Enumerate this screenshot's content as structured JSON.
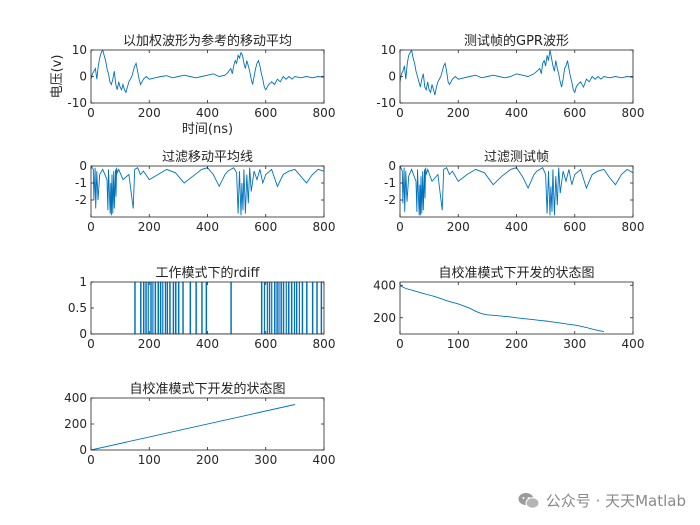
{
  "colors": {
    "line": "#0072BD",
    "axis": "#262626",
    "background": "#ffffff"
  },
  "watermark": {
    "text": "公众号 · 天天Matlab",
    "icon": "wechat-icon"
  },
  "chart_data": [
    {
      "type": "line",
      "title": "以加权波形为参考的移动平均",
      "xlabel": "时间(ns)",
      "ylabel": "电压(v)",
      "xlim": [
        0,
        800
      ],
      "ylim": [
        -10,
        10
      ],
      "xticks": [
        0,
        200,
        400,
        600,
        800
      ],
      "yticks": [
        -10,
        0,
        10
      ],
      "x": [
        0,
        5,
        10,
        15,
        20,
        25,
        30,
        35,
        40,
        45,
        50,
        55,
        60,
        65,
        70,
        75,
        80,
        85,
        90,
        95,
        100,
        105,
        110,
        115,
        120,
        125,
        130,
        140,
        150,
        155,
        160,
        165,
        170,
        175,
        180,
        190,
        200,
        220,
        240,
        260,
        280,
        300,
        320,
        340,
        360,
        380,
        400,
        420,
        440,
        460,
        470,
        480,
        485,
        490,
        495,
        500,
        505,
        510,
        515,
        520,
        525,
        530,
        535,
        540,
        545,
        550,
        555,
        560,
        565,
        570,
        575,
        580,
        585,
        590,
        595,
        600,
        605,
        610,
        620,
        630,
        640,
        650,
        660,
        670,
        680,
        690,
        700,
        720,
        740,
        760,
        780,
        800
      ],
      "values": [
        -1,
        1,
        2,
        3,
        -1,
        4,
        7,
        9,
        10,
        8,
        6,
        3,
        1,
        -2,
        -3,
        -1,
        2,
        -3,
        -5,
        -2,
        -4,
        -5,
        -3,
        -5,
        -6,
        -4,
        -2,
        0,
        4,
        5,
        2,
        -1,
        -3,
        -2,
        -1,
        0,
        -1,
        -0.5,
        0,
        0.3,
        -0.5,
        0,
        0.5,
        0,
        -0.5,
        0,
        0.5,
        1,
        0,
        0.5,
        1.5,
        3,
        1,
        4,
        6,
        5,
        8,
        7,
        9,
        8,
        5,
        3,
        6,
        4,
        2,
        -1,
        -3,
        0,
        3,
        5,
        6,
        4,
        1,
        -1,
        -4,
        -5,
        -4,
        -3,
        -2,
        -3,
        -1,
        -2,
        0,
        -1,
        0,
        -1,
        0,
        -0.5,
        0,
        -0.5,
        0,
        -0.3
      ]
    },
    {
      "type": "line",
      "title": "测试帧的GPR波形",
      "xlim": [
        0,
        800
      ],
      "ylim": [
        -10,
        10
      ],
      "xticks": [
        0,
        200,
        400,
        600,
        800
      ],
      "yticks": [
        -10,
        0,
        10
      ],
      "x": [
        0,
        5,
        10,
        15,
        20,
        25,
        30,
        35,
        40,
        45,
        50,
        55,
        60,
        65,
        70,
        75,
        80,
        85,
        90,
        95,
        100,
        105,
        110,
        115,
        120,
        125,
        130,
        140,
        150,
        155,
        160,
        165,
        170,
        175,
        180,
        190,
        200,
        220,
        240,
        260,
        280,
        300,
        320,
        340,
        360,
        380,
        400,
        420,
        440,
        460,
        470,
        480,
        485,
        490,
        495,
        500,
        505,
        510,
        515,
        520,
        525,
        530,
        535,
        540,
        545,
        550,
        555,
        560,
        565,
        570,
        575,
        580,
        585,
        590,
        595,
        600,
        605,
        610,
        620,
        630,
        640,
        650,
        660,
        670,
        680,
        690,
        700,
        720,
        740,
        760,
        780,
        800
      ],
      "values": [
        -2,
        1,
        2,
        4,
        -1,
        5,
        8,
        9,
        10,
        7,
        5,
        2,
        0,
        -2,
        -4,
        -1,
        1,
        -4,
        -5,
        -2,
        -5,
        -6,
        -3,
        -5,
        -7,
        -4,
        -2,
        0,
        4,
        5,
        2,
        -2,
        -3,
        -2,
        -1,
        0,
        -1,
        -0.5,
        0,
        0.5,
        -0.5,
        0,
        0.5,
        0,
        -0.5,
        0,
        1,
        0.5,
        0,
        1,
        2,
        3,
        1,
        5,
        6,
        4,
        8,
        6,
        10,
        7,
        4,
        2,
        6,
        3,
        1,
        -2,
        -4,
        -1,
        3,
        4,
        6,
        3,
        0,
        -2,
        -5,
        -6,
        -4,
        -3,
        -2,
        -4,
        -1,
        -2,
        0,
        -1,
        0,
        -1,
        0,
        -0.5,
        0,
        -0.5,
        0,
        -0.3
      ]
    },
    {
      "type": "line",
      "title": "过滤移动平均线",
      "xlim": [
        0,
        800
      ],
      "ylim": [
        -3,
        0
      ],
      "xticks": [
        0,
        200,
        400,
        600,
        800
      ],
      "yticks": [
        -2,
        -1,
        0
      ],
      "x": [
        0,
        8,
        10,
        14,
        16,
        20,
        24,
        30,
        40,
        55,
        58,
        60,
        66,
        68,
        70,
        72,
        75,
        78,
        80,
        84,
        86,
        88,
        90,
        95,
        110,
        130,
        145,
        150,
        160,
        170,
        180,
        200,
        230,
        260,
        290,
        320,
        350,
        380,
        400,
        420,
        440,
        460,
        470,
        480,
        490,
        500,
        505,
        510,
        515,
        518,
        522,
        525,
        530,
        535,
        540,
        545,
        550,
        560,
        570,
        580,
        590,
        600,
        620,
        640,
        660,
        680,
        700,
        720,
        740,
        760,
        780,
        800
      ],
      "values": [
        0,
        -0.2,
        -2,
        -0.1,
        -2.5,
        -0.3,
        -2,
        -0.5,
        -0.2,
        -0.8,
        -2.6,
        -0.2,
        -2.8,
        -1,
        -2.9,
        -0.5,
        -2.8,
        -0.3,
        -2.5,
        -0.2,
        -1.8,
        -0.1,
        -0.4,
        -0.2,
        -0.8,
        -0.5,
        -2.5,
        -0.2,
        -0.1,
        -0.5,
        -0.3,
        -0.8,
        -0.5,
        -0.2,
        -0.4,
        -1,
        -0.6,
        -0.2,
        -0.1,
        -0.5,
        -1.2,
        -0.5,
        -0.3,
        -0.2,
        -0.1,
        -0.4,
        -2.8,
        -0.3,
        -2.9,
        -1,
        -2.6,
        -0.2,
        -2.8,
        -0.5,
        -2.2,
        -0.1,
        -1.5,
        -0.3,
        -0.8,
        -0.2,
        -1,
        -0.5,
        -0.2,
        -1.2,
        -0.5,
        -0.3,
        -0.2,
        -0.6,
        -1,
        -0.5,
        -0.2,
        -0.3
      ]
    },
    {
      "type": "line",
      "title": "过滤测试帧",
      "xlim": [
        0,
        800
      ],
      "ylim": [
        -3,
        0
      ],
      "xticks": [
        0,
        200,
        400,
        600,
        800
      ],
      "yticks": [
        -2,
        -1,
        0
      ],
      "x": [
        0,
        8,
        10,
        14,
        16,
        20,
        24,
        30,
        40,
        55,
        58,
        60,
        66,
        68,
        70,
        72,
        75,
        78,
        80,
        84,
        86,
        88,
        90,
        95,
        110,
        130,
        145,
        150,
        160,
        170,
        180,
        200,
        230,
        260,
        290,
        320,
        350,
        380,
        400,
        420,
        440,
        460,
        470,
        480,
        490,
        500,
        505,
        510,
        515,
        518,
        522,
        525,
        530,
        535,
        540,
        545,
        550,
        560,
        570,
        580,
        590,
        600,
        620,
        640,
        660,
        680,
        700,
        720,
        740,
        760,
        780,
        800
      ],
      "values": [
        0,
        -0.3,
        -2.2,
        -0.1,
        -2.7,
        -0.3,
        -2.1,
        -0.6,
        -0.2,
        -0.9,
        -2.7,
        -0.2,
        -2.9,
        -1.1,
        -2.9,
        -0.6,
        -2.8,
        -0.3,
        -2.6,
        -0.2,
        -1.9,
        -0.1,
        -0.5,
        -0.2,
        -0.9,
        -0.5,
        -2.6,
        -0.2,
        -0.1,
        -0.5,
        -0.3,
        -0.9,
        -0.5,
        -0.2,
        -0.4,
        -1.1,
        -0.6,
        -0.2,
        -0.1,
        -0.6,
        -1.3,
        -0.5,
        -0.3,
        -0.2,
        -0.1,
        -0.5,
        -2.8,
        -0.3,
        -2.9,
        -1.2,
        -2.7,
        -0.2,
        -2.9,
        -0.6,
        -2.3,
        -0.1,
        -1.6,
        -0.3,
        -0.9,
        -0.2,
        -1.1,
        -0.5,
        -0.2,
        -1.3,
        -0.5,
        -0.3,
        -0.2,
        -0.7,
        -1.1,
        -0.5,
        -0.2,
        -0.4
      ]
    },
    {
      "type": "line",
      "title": "工作模式下的rdiff",
      "xlim": [
        0,
        800
      ],
      "ylim": [
        0,
        1
      ],
      "xticks": [
        0,
        200,
        400,
        600,
        800
      ],
      "yticks": [
        0,
        0.5,
        1
      ],
      "pulses": [
        [
          150,
          152
        ],
        [
          170,
          172
        ],
        [
          180,
          182
        ],
        [
          188,
          190
        ],
        [
          196,
          197
        ],
        [
          205,
          207
        ],
        [
          212,
          213
        ],
        [
          220,
          222
        ],
        [
          230,
          232
        ],
        [
          238,
          240
        ],
        [
          246,
          247
        ],
        [
          255,
          257
        ],
        [
          262,
          263
        ],
        [
          270,
          272
        ],
        [
          282,
          284
        ],
        [
          290,
          292
        ],
        [
          300,
          302
        ],
        [
          315,
          317
        ],
        [
          340,
          342
        ],
        [
          360,
          362
        ],
        [
          380,
          382
        ],
        [
          395,
          397
        ],
        [
          480,
          482
        ],
        [
          585,
          587
        ],
        [
          595,
          596
        ],
        [
          605,
          606
        ],
        [
          612,
          614
        ],
        [
          620,
          621
        ],
        [
          630,
          632
        ],
        [
          638,
          640
        ],
        [
          645,
          646
        ],
        [
          652,
          654
        ],
        [
          660,
          662
        ],
        [
          670,
          671
        ],
        [
          678,
          680
        ],
        [
          688,
          690
        ],
        [
          698,
          699
        ],
        [
          705,
          707
        ],
        [
          715,
          716
        ],
        [
          725,
          727
        ],
        [
          740,
          742
        ],
        [
          760,
          762
        ],
        [
          775,
          777
        ],
        [
          790,
          792
        ]
      ]
    },
    {
      "type": "line",
      "title": "自校准模式下开发的状态图",
      "xlim": [
        0,
        400
      ],
      "ylim": [
        100,
        420
      ],
      "xticks": [
        0,
        100,
        200,
        300,
        400
      ],
      "yticks": [
        200,
        400
      ],
      "x": [
        0,
        10,
        20,
        30,
        40,
        50,
        60,
        70,
        80,
        90,
        100,
        110,
        120,
        130,
        140,
        150,
        160,
        170,
        180,
        190,
        200,
        210,
        220,
        230,
        240,
        250,
        260,
        270,
        280,
        290,
        300,
        310,
        320,
        330,
        340,
        350
      ],
      "values": [
        398,
        380,
        370,
        360,
        350,
        340,
        330,
        318,
        305,
        295,
        285,
        272,
        258,
        240,
        225,
        218,
        215,
        212,
        208,
        205,
        200,
        196,
        192,
        188,
        184,
        180,
        175,
        170,
        165,
        160,
        155,
        148,
        140,
        130,
        122,
        115
      ]
    },
    {
      "type": "line",
      "title": "自校准模式下开发的状态图",
      "xlim": [
        0,
        400
      ],
      "ylim": [
        0,
        400
      ],
      "xticks": [
        0,
        100,
        200,
        300,
        400
      ],
      "yticks": [
        0,
        200,
        400
      ],
      "x": [
        0,
        350
      ],
      "values": [
        0,
        350
      ]
    }
  ]
}
